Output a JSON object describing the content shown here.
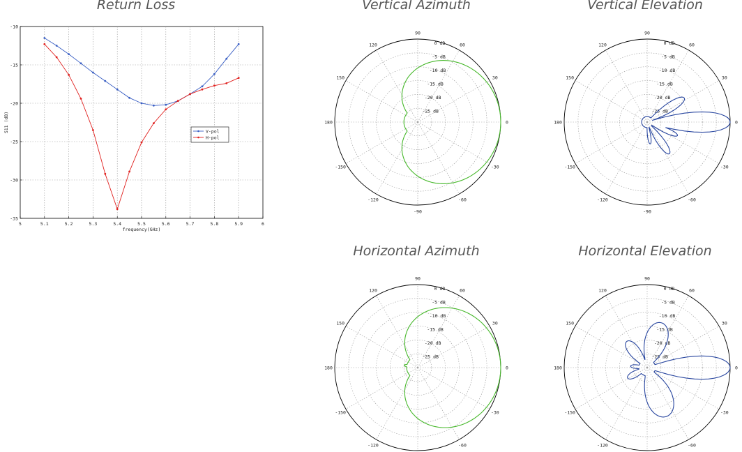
{
  "colors": {
    "v_pol": "#3a5fc4",
    "h_pol": "#e0201e",
    "green_trace": "#46b82a",
    "blue_trace": "#26449e",
    "grid": "#9a9a9a"
  },
  "chart_data": [
    {
      "type": "line",
      "title": "Return Loss",
      "xlabel": "frequency(GHz)",
      "ylabel": "S11 (dB)",
      "xlim": [
        5,
        6
      ],
      "ylim": [
        -35,
        -10
      ],
      "xticks": [
        "5",
        "5.1",
        "5.2",
        "5.3",
        "5.4",
        "5.5",
        "5.6",
        "5.7",
        "5.8",
        "5.9",
        "6"
      ],
      "yticks": [
        "-10",
        "-15",
        "-20",
        "-25",
        "-30",
        "-35"
      ],
      "grid": true,
      "legend": "center-right",
      "x": [
        5.1,
        5.15,
        5.2,
        5.25,
        5.3,
        5.35,
        5.4,
        5.45,
        5.5,
        5.55,
        5.6,
        5.65,
        5.7,
        5.75,
        5.8,
        5.85,
        5.9
      ],
      "series": [
        {
          "name": "V-pol",
          "values": [
            -11.5,
            -12.5,
            -13.6,
            -14.8,
            -16.0,
            -17.1,
            -18.2,
            -19.3,
            -20.0,
            -20.3,
            -20.2,
            -19.7,
            -18.8,
            -17.8,
            -16.2,
            -14.2,
            -12.3
          ]
        },
        {
          "name": "H-pol",
          "values": [
            -12.3,
            -14.0,
            -16.3,
            -19.4,
            -23.5,
            -29.2,
            -33.8,
            -28.9,
            -25.1,
            -22.6,
            -20.8,
            -19.7,
            -18.8,
            -18.2,
            -17.7,
            -17.4,
            -16.7
          ]
        }
      ]
    },
    {
      "type": "polar",
      "title": "Vertical Azimuth",
      "angle_labels": [
        "90",
        "60",
        "30",
        "0",
        "-30",
        "-60",
        "-90",
        "-120",
        "-150",
        "180",
        "150",
        "120"
      ],
      "radial_labels": [
        "0 dB",
        "-5 dB",
        "-10 dB",
        "-15 dB",
        "-20 dB",
        "-25 dB"
      ],
      "rlim_db": [
        -30,
        0
      ],
      "pattern": {
        "main_lobe_deg": 0,
        "main_lobe_db": 0,
        "main_width_deg": 58,
        "back_level_db": -25,
        "side_lobes": [
          {
            "angle_deg": 110,
            "db": -20,
            "width_deg": 18
          }
        ]
      }
    },
    {
      "type": "polar",
      "title": "Vertical Elevation",
      "angle_labels": [
        "90",
        "60",
        "30",
        "0",
        "-30",
        "-60",
        "-90",
        "-120",
        "-150",
        "180",
        "150",
        "120"
      ],
      "radial_labels": [
        "0 dB",
        "-5 dB",
        "-10 dB",
        "-15 dB",
        "-20 dB",
        "-25 dB"
      ],
      "rlim_db": [
        -30,
        0
      ],
      "pattern": {
        "main_lobe_deg": 0,
        "main_lobe_db": 0,
        "main_width_deg": 7,
        "back_level_db": -28,
        "side_lobes": [
          {
            "angle_deg": 33,
            "db": -14,
            "width_deg": 8
          },
          {
            "angle_deg": -24,
            "db": -18,
            "width_deg": 7
          },
          {
            "angle_deg": -55,
            "db": -16,
            "width_deg": 8
          },
          {
            "angle_deg": -82,
            "db": -22,
            "width_deg": 8
          }
        ]
      }
    },
    {
      "type": "polar",
      "title": "Horizontal Azimuth",
      "angle_labels": [
        "90",
        "60",
        "30",
        "0",
        "-30",
        "-60",
        "-90",
        "-120",
        "-150",
        "180",
        "150",
        "120"
      ],
      "radial_labels": [
        "0 dB",
        "-5 dB",
        "-10 dB",
        "-15 dB",
        "-20 dB",
        "-25 dB"
      ],
      "rlim_db": [
        -30,
        0
      ],
      "pattern": {
        "main_lobe_deg": 0,
        "main_lobe_db": 0,
        "main_width_deg": 55,
        "back_level_db": -26,
        "side_lobes": [
          {
            "angle_deg": -42,
            "db": -10,
            "width_deg": 12
          },
          {
            "angle_deg": 170,
            "db": -25,
            "width_deg": 12
          },
          {
            "angle_deg": -128,
            "db": -26,
            "width_deg": 10
          }
        ]
      }
    },
    {
      "type": "polar",
      "title": "Horizontal Elevation",
      "angle_labels": [
        "90",
        "60",
        "30",
        "0",
        "-30",
        "-60",
        "-90",
        "-120",
        "-150",
        "180",
        "150",
        "120"
      ],
      "radial_labels": [
        "0 dB",
        "-5 dB",
        "-10 dB",
        "-15 dB",
        "-20 dB",
        "-25 dB"
      ],
      "rlim_db": [
        -30,
        0
      ],
      "pattern": {
        "main_lobe_deg": 0,
        "main_lobe_db": 0,
        "main_width_deg": 8,
        "back_level_db": -27,
        "side_lobes": [
          {
            "angle_deg": 72,
            "db": -13,
            "width_deg": 18
          },
          {
            "angle_deg": 128,
            "db": -18,
            "width_deg": 15
          },
          {
            "angle_deg": -68,
            "db": -11,
            "width_deg": 18
          },
          {
            "angle_deg": 175,
            "db": -24,
            "width_deg": 14
          },
          {
            "angle_deg": -152,
            "db": -22,
            "width_deg": 16
          }
        ]
      }
    }
  ]
}
